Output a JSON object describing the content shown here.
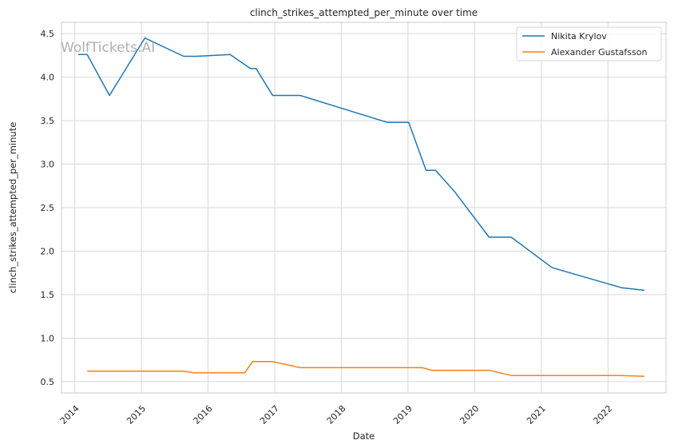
{
  "chart_data": {
    "type": "line",
    "title": "clinch_strikes_attempted_per_minute over time",
    "xlabel": "Date",
    "ylabel": "clinch_strikes_attempted_per_minute",
    "watermark": "WolfTickets.AI",
    "x_axis": "date",
    "xlim": [
      "2013-10-20",
      "2022-11-15"
    ],
    "ylim": [
      0.37,
      4.63
    ],
    "x_ticks": [
      "2014",
      "2015",
      "2016",
      "2017",
      "2018",
      "2019",
      "2020",
      "2021",
      "2022"
    ],
    "y_ticks": [
      "0.5",
      "1.0",
      "1.5",
      "2.0",
      "2.5",
      "3.0",
      "3.5",
      "4.0",
      "4.5"
    ],
    "grid": true,
    "legend_position": "top-right",
    "series": [
      {
        "name": "Nikita Krylov",
        "color": "#1f77b4",
        "points": [
          [
            "2014-01-20",
            4.26
          ],
          [
            "2014-03-10",
            4.26
          ],
          [
            "2014-07-10",
            3.79
          ],
          [
            "2015-01-20",
            4.45
          ],
          [
            "2015-08-20",
            4.24
          ],
          [
            "2015-11-01",
            4.24
          ],
          [
            "2016-05-01",
            4.26
          ],
          [
            "2016-08-20",
            4.1
          ],
          [
            "2016-09-20",
            4.1
          ],
          [
            "2016-12-20",
            3.79
          ],
          [
            "2017-05-20",
            3.79
          ],
          [
            "2018-09-10",
            3.48
          ],
          [
            "2019-01-05",
            3.48
          ],
          [
            "2019-04-10",
            2.93
          ],
          [
            "2019-06-01",
            2.93
          ],
          [
            "2019-09-15",
            2.68
          ],
          [
            "2020-03-20",
            2.16
          ],
          [
            "2020-07-20",
            2.16
          ],
          [
            "2021-03-01",
            1.81
          ],
          [
            "2022-03-15",
            1.58
          ],
          [
            "2022-07-20",
            1.55
          ]
        ]
      },
      {
        "name": "Alexander Gustafsson",
        "color": "#ff7f0e",
        "points": [
          [
            "2014-03-10",
            0.62
          ],
          [
            "2015-08-20",
            0.62
          ],
          [
            "2015-10-15",
            0.6
          ],
          [
            "2016-07-20",
            0.6
          ],
          [
            "2016-09-01",
            0.73
          ],
          [
            "2016-12-20",
            0.73
          ],
          [
            "2017-05-20",
            0.66
          ],
          [
            "2019-03-20",
            0.66
          ],
          [
            "2019-05-10",
            0.63
          ],
          [
            "2020-03-20",
            0.63
          ],
          [
            "2020-07-20",
            0.57
          ],
          [
            "2022-03-15",
            0.57
          ],
          [
            "2022-07-20",
            0.56
          ]
        ]
      }
    ]
  }
}
